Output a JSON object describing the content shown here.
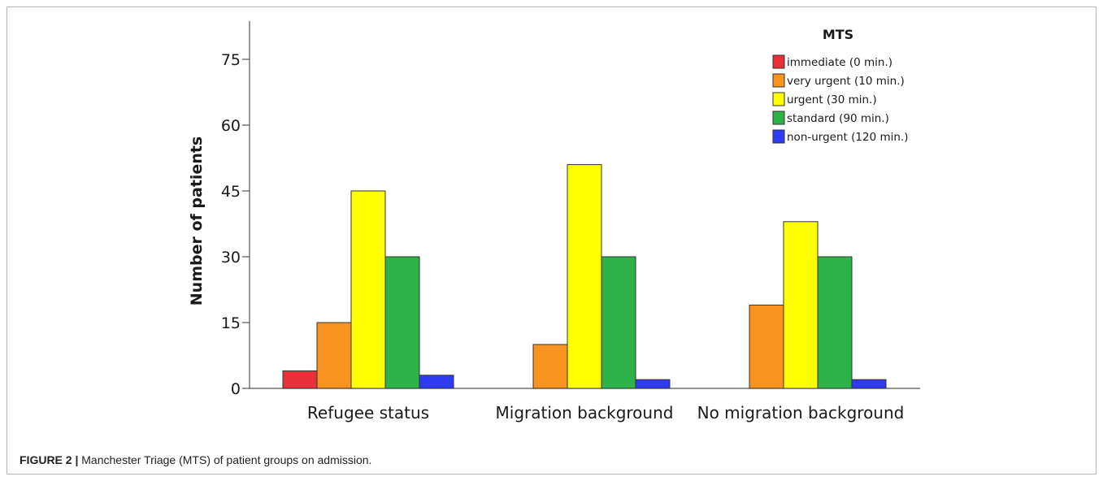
{
  "chart_data": {
    "type": "bar",
    "categories": [
      "Refugee status",
      "Migration background",
      "No migration background"
    ],
    "series": [
      {
        "name": "immediate (0 min.)",
        "color": "#e8303a",
        "values": [
          4,
          0,
          0
        ]
      },
      {
        "name": "very urgent (10 min.)",
        "color": "#f7931e",
        "values": [
          15,
          10,
          19
        ]
      },
      {
        "name": "urgent (30 min.)",
        "color": "#ffff00",
        "values": [
          45,
          51,
          38
        ]
      },
      {
        "name": "standard (90 min.)",
        "color": "#2db34a",
        "values": [
          30,
          30,
          30
        ]
      },
      {
        "name": "non-urgent (120 min.)",
        "color": "#2e3bf0",
        "values": [
          3,
          2,
          2
        ]
      }
    ],
    "ylabel": "Number of patients",
    "xlabel": "",
    "yticks": [
      0,
      15,
      30,
      45,
      60,
      75
    ],
    "ylim": [
      0,
      85
    ],
    "legend_title": "MTS",
    "legend_position": "top-right",
    "grid": false
  },
  "caption": {
    "label": "FIGURE 2 |",
    "text": "Manchester Triage (MTS) of patient groups on admission."
  }
}
